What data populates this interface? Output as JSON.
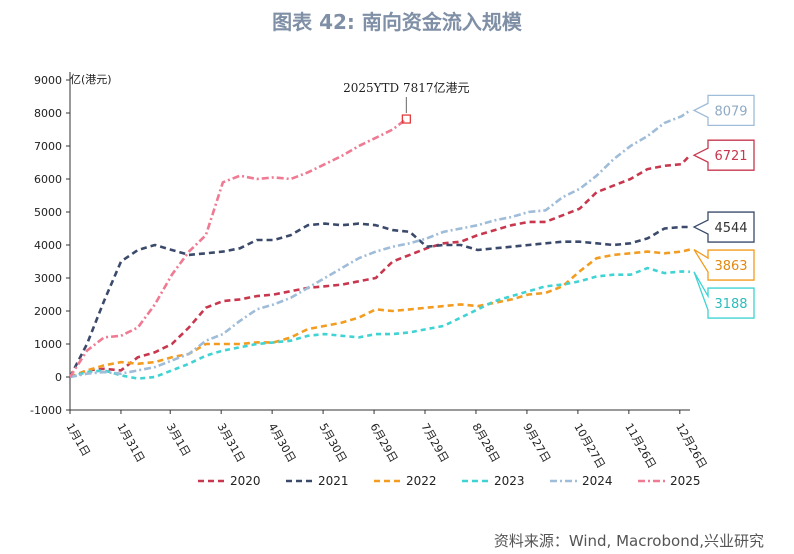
{
  "title": "图表 42: 南向资金流入规模",
  "source": "资料来源：Wind, Macrobond,兴业研究",
  "chart_data": {
    "type": "line",
    "title": "图表 42: 南向资金流入规模",
    "ylabel": "亿(港元)",
    "ylim": [
      -1000,
      9000
    ],
    "yticks": [
      -1000,
      0,
      1000,
      2000,
      3000,
      4000,
      5000,
      6000,
      7000,
      8000,
      9000
    ],
    "xlim": [
      0,
      365
    ],
    "xticks": [
      {
        "d": 0,
        "label": "1月1日"
      },
      {
        "d": 30,
        "label": "1月31日"
      },
      {
        "d": 59,
        "label": "3月1日"
      },
      {
        "d": 89,
        "label": "3月31日"
      },
      {
        "d": 119,
        "label": "4月30日"
      },
      {
        "d": 149,
        "label": "5月30日"
      },
      {
        "d": 179,
        "label": "6月29日"
      },
      {
        "d": 209,
        "label": "7月29日"
      },
      {
        "d": 239,
        "label": "8月28日"
      },
      {
        "d": 269,
        "label": "9月27日"
      },
      {
        "d": 299,
        "label": "10月27日"
      },
      {
        "d": 329,
        "label": "11月26日"
      },
      {
        "d": 359,
        "label": "12月26日"
      }
    ],
    "grid": false,
    "legend": "bottom",
    "annotation": {
      "text": "2025YTD 7817亿港元",
      "x": 198,
      "y": 7817
    },
    "series": [
      {
        "name": "2020",
        "color": "#c8374e",
        "end_label": "6721",
        "x": [
          0,
          10,
          20,
          30,
          40,
          50,
          60,
          70,
          80,
          90,
          100,
          110,
          120,
          130,
          140,
          150,
          160,
          170,
          180,
          190,
          200,
          210,
          220,
          230,
          240,
          250,
          260,
          270,
          280,
          290,
          300,
          310,
          320,
          330,
          340,
          350,
          360,
          365
        ],
        "y": [
          0,
          200,
          250,
          200,
          600,
          750,
          1000,
          1500,
          2100,
          2300,
          2350,
          2450,
          2500,
          2600,
          2700,
          2750,
          2800,
          2900,
          3000,
          3500,
          3700,
          3900,
          4050,
          4100,
          4300,
          4450,
          4600,
          4700,
          4700,
          4900,
          5100,
          5600,
          5800,
          6000,
          6300,
          6400,
          6450,
          6721
        ]
      },
      {
        "name": "2021",
        "color": "#3b4a6b",
        "end_label": "4544",
        "x": [
          0,
          10,
          20,
          30,
          40,
          50,
          60,
          70,
          80,
          90,
          100,
          110,
          120,
          130,
          140,
          150,
          160,
          170,
          180,
          190,
          200,
          210,
          220,
          230,
          240,
          250,
          260,
          270,
          280,
          290,
          300,
          310,
          320,
          330,
          340,
          350,
          360,
          365
        ],
        "y": [
          0,
          1000,
          2300,
          3500,
          3850,
          4000,
          3850,
          3700,
          3750,
          3800,
          3900,
          4150,
          4150,
          4300,
          4600,
          4650,
          4600,
          4650,
          4600,
          4450,
          4400,
          3950,
          4000,
          4000,
          3850,
          3900,
          3950,
          4000,
          4050,
          4100,
          4100,
          4050,
          4000,
          4050,
          4200,
          4500,
          4544,
          4544
        ]
      },
      {
        "name": "2022",
        "color": "#f39c1f",
        "end_label": "3863",
        "x": [
          0,
          10,
          20,
          30,
          40,
          50,
          60,
          70,
          80,
          90,
          100,
          110,
          120,
          130,
          140,
          150,
          160,
          170,
          180,
          190,
          200,
          210,
          220,
          230,
          240,
          250,
          260,
          270,
          280,
          290,
          300,
          310,
          320,
          330,
          340,
          350,
          360,
          365
        ],
        "y": [
          0,
          200,
          350,
          450,
          400,
          450,
          600,
          700,
          1000,
          1000,
          1000,
          1050,
          1050,
          1200,
          1450,
          1550,
          1650,
          1800,
          2050,
          2000,
          2050,
          2100,
          2150,
          2200,
          2150,
          2250,
          2350,
          2500,
          2550,
          2750,
          3200,
          3600,
          3700,
          3750,
          3800,
          3750,
          3800,
          3863
        ]
      },
      {
        "name": "2023",
        "color": "#3fd3d3",
        "end_label": "3188",
        "x": [
          0,
          10,
          20,
          30,
          40,
          50,
          60,
          70,
          80,
          90,
          100,
          110,
          120,
          130,
          140,
          150,
          160,
          170,
          180,
          190,
          200,
          210,
          220,
          230,
          240,
          250,
          260,
          270,
          280,
          290,
          300,
          310,
          320,
          330,
          340,
          350,
          360,
          365
        ],
        "y": [
          0,
          150,
          200,
          50,
          -50,
          0,
          200,
          400,
          650,
          800,
          900,
          1000,
          1050,
          1100,
          1250,
          1300,
          1250,
          1200,
          1300,
          1300,
          1350,
          1450,
          1550,
          1800,
          2050,
          2300,
          2450,
          2600,
          2750,
          2800,
          2900,
          3050,
          3100,
          3100,
          3300,
          3150,
          3200,
          3188
        ]
      },
      {
        "name": "2024",
        "color": "#9fbcd8",
        "end_label": "8079",
        "x": [
          0,
          10,
          20,
          30,
          40,
          50,
          60,
          70,
          80,
          90,
          100,
          110,
          120,
          130,
          140,
          150,
          160,
          170,
          180,
          190,
          200,
          210,
          220,
          230,
          240,
          250,
          260,
          270,
          280,
          290,
          300,
          310,
          320,
          330,
          340,
          350,
          360,
          365
        ],
        "y": [
          0,
          100,
          150,
          100,
          200,
          300,
          500,
          700,
          1100,
          1300,
          1700,
          2050,
          2200,
          2400,
          2700,
          3000,
          3300,
          3600,
          3800,
          3950,
          4050,
          4200,
          4400,
          4500,
          4600,
          4750,
          4850,
          5000,
          5050,
          5450,
          5700,
          6100,
          6600,
          7000,
          7300,
          7700,
          7900,
          8079
        ]
      },
      {
        "name": "2025",
        "color": "#ef7a92",
        "end_label": "",
        "x": [
          0,
          10,
          20,
          30,
          40,
          50,
          60,
          70,
          80,
          90,
          100,
          110,
          120,
          130,
          140,
          150,
          160,
          170,
          180,
          190,
          198
        ],
        "y": [
          0,
          800,
          1200,
          1250,
          1500,
          2200,
          3100,
          3800,
          4300,
          5900,
          6100,
          6000,
          6050,
          6000,
          6200,
          6450,
          6700,
          7000,
          7250,
          7500,
          7817
        ]
      }
    ]
  }
}
